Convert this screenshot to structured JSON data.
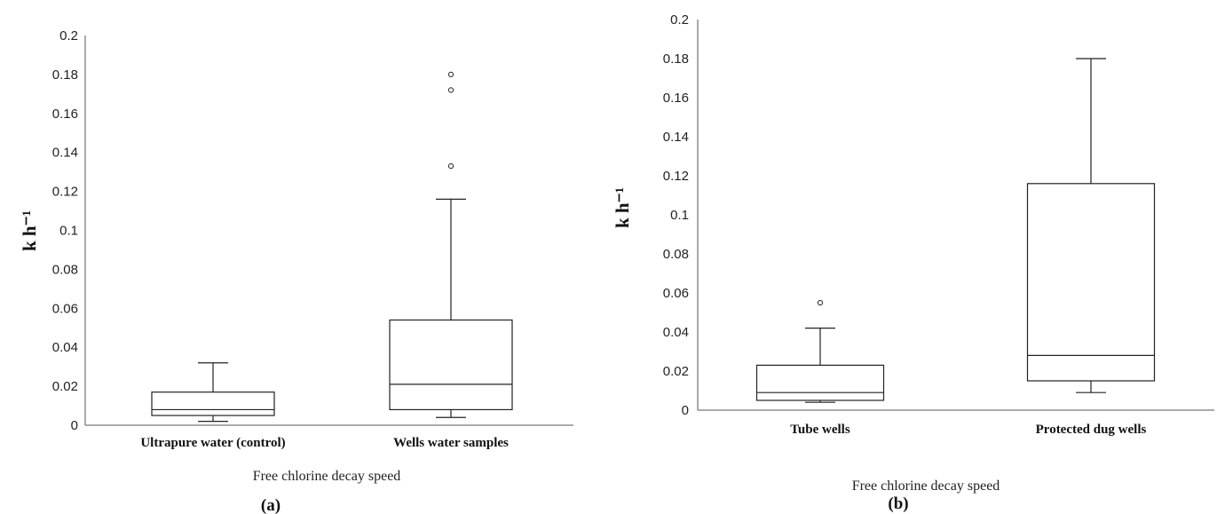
{
  "chart_data": [
    {
      "type": "box",
      "panel_label": "(a)",
      "xlabel": "Free chlorine decay speed",
      "ylabel": "k h⁻¹",
      "ylim": [
        0,
        0.2
      ],
      "yticks": [
        "0",
        "0.02",
        "0.04",
        "0.06",
        "0.08",
        "0.1",
        "0.12",
        "0.14",
        "0.16",
        "0.18",
        "0.2"
      ],
      "grid": false,
      "categories": [
        "Ultrapure water (control)",
        "Wells water samples"
      ],
      "boxes": [
        {
          "whisker_low": 0.002,
          "q1": 0.005,
          "median": 0.008,
          "q3": 0.017,
          "whisker_high": 0.032,
          "outliers": []
        },
        {
          "whisker_low": 0.004,
          "q1": 0.008,
          "median": 0.021,
          "q3": 0.054,
          "whisker_high": 0.116,
          "outliers": [
            0.133,
            0.172,
            0.18
          ]
        }
      ]
    },
    {
      "type": "box",
      "panel_label": "(b)",
      "xlabel": "Free chlorine decay speed",
      "ylabel": "k h⁻¹",
      "ylim": [
        0,
        0.2
      ],
      "yticks": [
        "0",
        "0.02",
        "0.04",
        "0.06",
        "0.08",
        "0.1",
        "0.12",
        "0.14",
        "0.16",
        "0.18",
        "0.2"
      ],
      "grid": false,
      "categories": [
        "Tube wells",
        "Protected dug wells"
      ],
      "boxes": [
        {
          "whisker_low": 0.004,
          "q1": 0.005,
          "median": 0.009,
          "q3": 0.023,
          "whisker_high": 0.042,
          "outliers": [
            0.055
          ]
        },
        {
          "whisker_low": 0.009,
          "q1": 0.015,
          "median": 0.028,
          "q3": 0.116,
          "whisker_high": 0.18,
          "outliers": []
        }
      ]
    }
  ]
}
